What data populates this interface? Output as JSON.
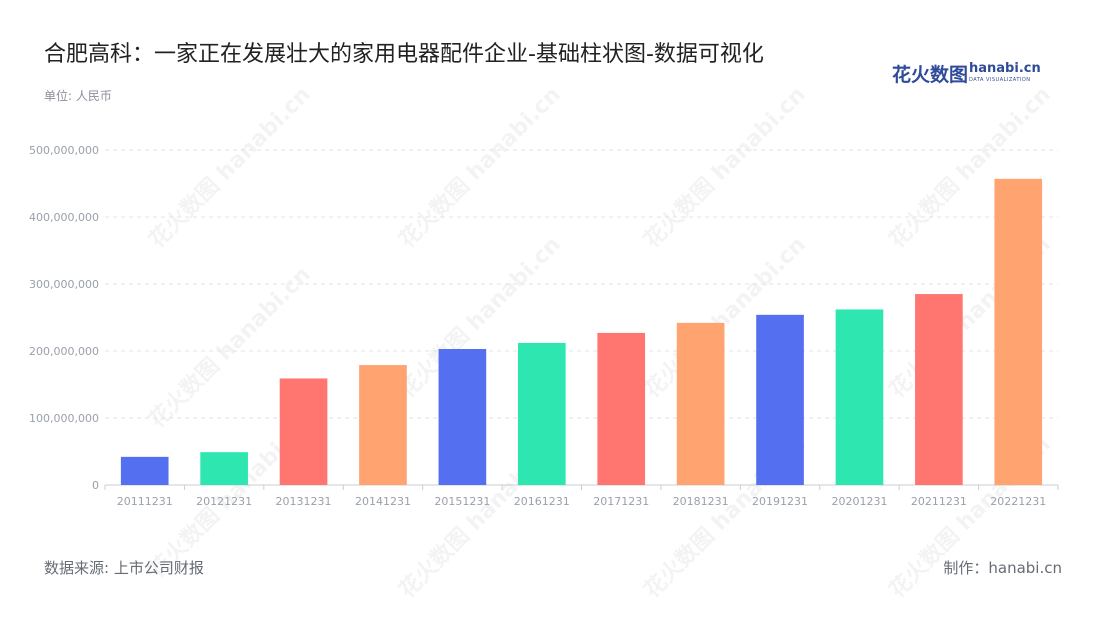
{
  "title": "合肥高科：一家正在发展壮大的家用电器配件企业-基础柱状图-数据可视化",
  "unit_label": "单位: 人民币",
  "logo": {
    "cn_text": "花火数图",
    "en_text": "hanabi.cn",
    "sub_text": "DATA VISUALIZATION"
  },
  "footer": {
    "source": "数据来源: 上市公司财报",
    "maker": "制作：hanabi.cn"
  },
  "watermark_text": "花火数图 hanabi.cn",
  "chart_data": {
    "type": "bar",
    "categories": [
      "20111231",
      "20121231",
      "20131231",
      "20141231",
      "20151231",
      "20161231",
      "20171231",
      "20181231",
      "20191231",
      "20201231",
      "20211231",
      "20221231"
    ],
    "values": [
      42000000,
      49000000,
      159000000,
      179000000,
      203000000,
      212000000,
      227000000,
      242000000,
      254000000,
      262000000,
      285000000,
      457000000
    ],
    "colors": [
      "#5470f0",
      "#2de6b0",
      "#ff7570",
      "#ffa370",
      "#5470f0",
      "#2de6b0",
      "#ff7570",
      "#ffa370",
      "#5470f0",
      "#2de6b0",
      "#ff7570",
      "#ffa370"
    ],
    "y_ticks": [
      "0",
      "100,000,000",
      "200,000,000",
      "300,000,000",
      "400,000,000",
      "500,000,000"
    ],
    "ylim": [
      0,
      500000000
    ],
    "grid": true,
    "grid_color": "#e0e3e8",
    "axis_color": "#c9ccd3",
    "tick_label_color": "#9aa0aa"
  }
}
